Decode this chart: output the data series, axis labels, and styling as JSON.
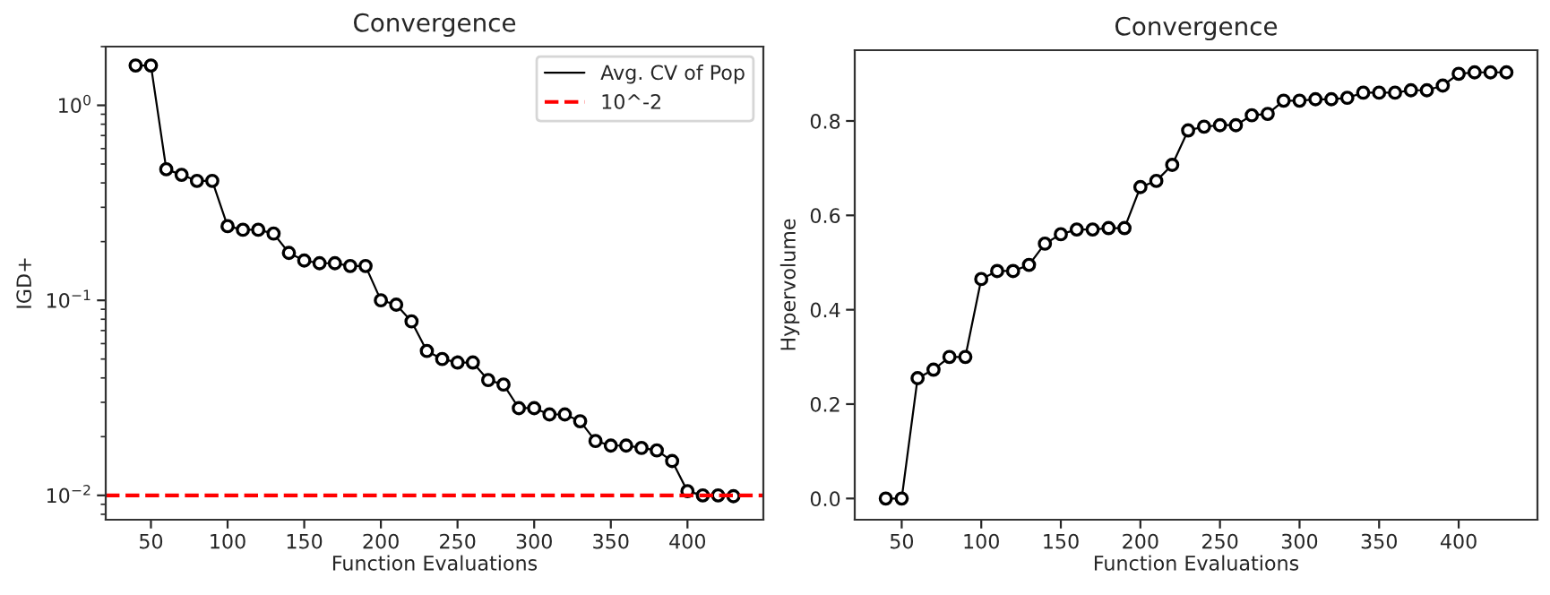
{
  "chart_data": [
    {
      "type": "line",
      "title": "Convergence",
      "xlabel": "Function Evaluations",
      "ylabel": "IGD+",
      "log": "y",
      "marker": "circle",
      "line_style": "solid",
      "grid": false,
      "legend": "top right",
      "x": [
        40,
        50,
        60,
        70,
        80,
        90,
        100,
        110,
        120,
        130,
        140,
        150,
        160,
        170,
        180,
        190,
        200,
        210,
        220,
        230,
        240,
        250,
        260,
        270,
        280,
        290,
        300,
        310,
        320,
        330,
        340,
        350,
        360,
        370,
        380,
        390,
        400,
        410,
        420,
        430
      ],
      "series": [
        {
          "name": "Avg. CV of Pop",
          "color": "#000000",
          "values": [
            1.6,
            1.6,
            0.47,
            0.44,
            0.41,
            0.41,
            0.24,
            0.23,
            0.23,
            0.22,
            0.175,
            0.16,
            0.155,
            0.155,
            0.15,
            0.15,
            0.1,
            0.095,
            0.078,
            0.055,
            0.05,
            0.048,
            0.048,
            0.039,
            0.037,
            0.028,
            0.028,
            0.026,
            0.026,
            0.024,
            0.019,
            0.018,
            0.018,
            0.0175,
            0.017,
            0.015,
            0.0105,
            0.01,
            0.01,
            0.0099
          ]
        }
      ],
      "ref_lines": [
        {
          "axis": "y",
          "value": 0.01,
          "label": "10^-2",
          "color": "#ff0000",
          "line_style": "dashed"
        }
      ],
      "xlim": [
        20.5,
        449.5
      ],
      "xticks": [
        50,
        100,
        150,
        200,
        250,
        300,
        350,
        400
      ],
      "ylim": [
        0.0075,
        2.0
      ],
      "yticks": [
        {
          "value": 0.01,
          "label": "10$^{−2}$"
        },
        {
          "value": 0.1,
          "label": "10$^{−1}$"
        },
        {
          "value": 1,
          "label": "10$^{0}$"
        }
      ]
    },
    {
      "type": "line",
      "title": "Convergence",
      "xlabel": "Function Evaluations",
      "ylabel": "Hypervolume",
      "marker": "circle",
      "line_style": "solid",
      "grid": false,
      "legend": false,
      "x": [
        40,
        50,
        60,
        70,
        80,
        90,
        100,
        110,
        120,
        130,
        140,
        150,
        160,
        170,
        180,
        190,
        200,
        210,
        220,
        230,
        240,
        250,
        260,
        270,
        280,
        290,
        300,
        310,
        320,
        330,
        340,
        350,
        360,
        370,
        380,
        390,
        400,
        410,
        420,
        430
      ],
      "series": [
        {
          "color": "#000000",
          "values": [
            0,
            0,
            0.255,
            0.273,
            0.3,
            0.3,
            0.465,
            0.482,
            0.482,
            0.495,
            0.54,
            0.56,
            0.57,
            0.57,
            0.573,
            0.573,
            0.66,
            0.673,
            0.707,
            0.78,
            0.788,
            0.791,
            0.791,
            0.812,
            0.815,
            0.843,
            0.843,
            0.846,
            0.846,
            0.849,
            0.86,
            0.86,
            0.86,
            0.865,
            0.865,
            0.875,
            0.9,
            0.903,
            0.903,
            0.903
          ]
        }
      ],
      "xlim": [
        20.5,
        449.5
      ],
      "xticks": [
        50,
        100,
        150,
        200,
        250,
        300,
        350,
        400
      ],
      "ylim": [
        -0.045,
        0.95
      ],
      "yticks": [
        {
          "value": 0,
          "label": "0.0"
        },
        0.2,
        0.4,
        0.6,
        0.8
      ]
    }
  ]
}
